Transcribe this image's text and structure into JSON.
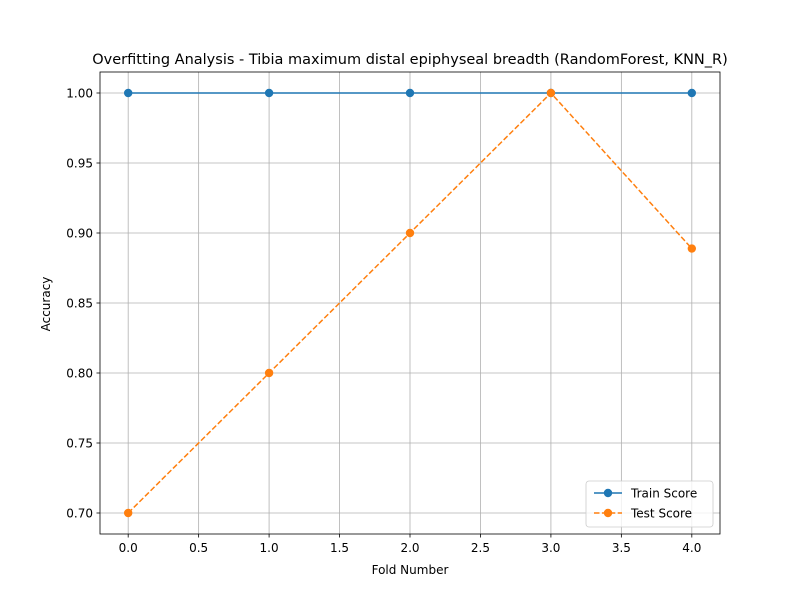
{
  "chart_data": {
    "type": "line",
    "title": "Overfitting Analysis - Tibia maximum distal epiphyseal breadth (RandomForest, KNN_R)",
    "xlabel": "Fold Number",
    "ylabel": "Accuracy",
    "x": [
      0,
      1,
      2,
      3,
      4
    ],
    "xlim": [
      -0.2,
      4.2
    ],
    "ylim": [
      0.685,
      1.015
    ],
    "xticks": [
      "0.0",
      "0.5",
      "1.0",
      "1.5",
      "2.0",
      "2.5",
      "3.0",
      "3.5",
      "4.0"
    ],
    "yticks": [
      "0.70",
      "0.75",
      "0.80",
      "0.85",
      "0.90",
      "0.95",
      "1.00"
    ],
    "grid": true,
    "legend_position": "lower-right",
    "series": [
      {
        "name": "Train Score",
        "values": [
          1.0,
          1.0,
          1.0,
          1.0,
          1.0
        ],
        "color": "#1f77b4",
        "linestyle": "solid",
        "marker": "circle"
      },
      {
        "name": "Test Score",
        "values": [
          0.7,
          0.8,
          0.9,
          1.0,
          0.8889
        ],
        "color": "#ff7f0e",
        "linestyle": "dashed",
        "marker": "circle"
      }
    ]
  }
}
